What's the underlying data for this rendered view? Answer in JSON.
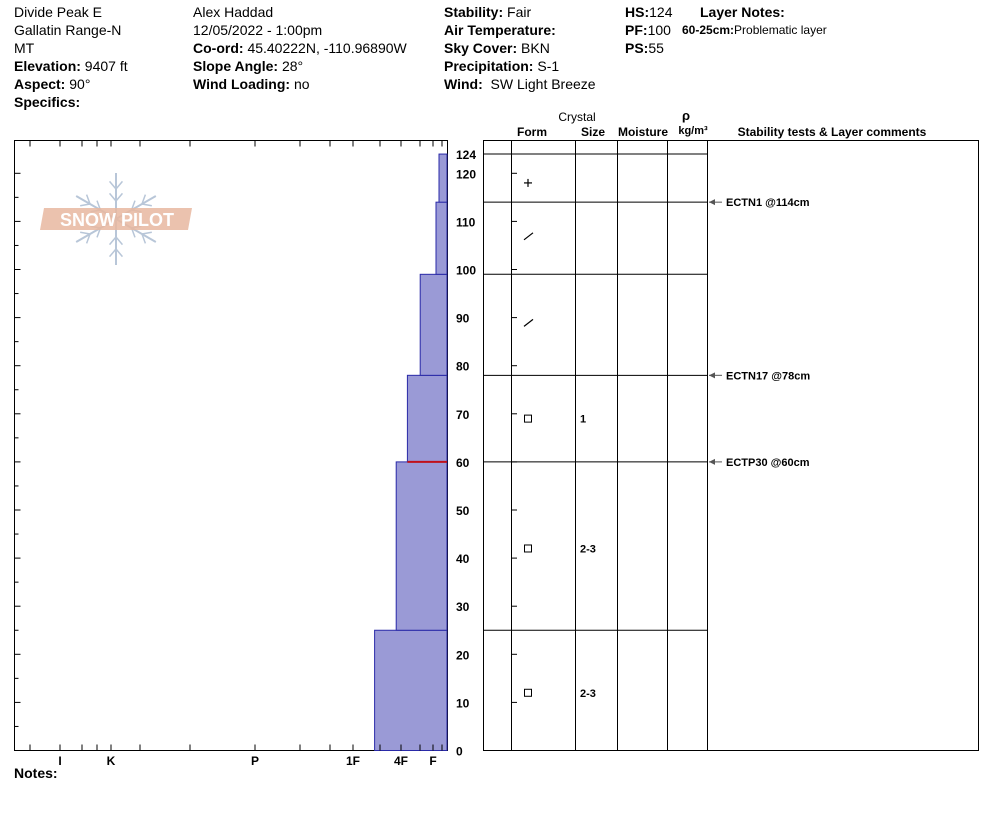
{
  "header": {
    "location": "Divide Peak E",
    "range": "Gallatin Range-N",
    "state": "MT",
    "elevation_label": "Elevation:",
    "elevation_value": "9407 ft",
    "aspect_label": "Aspect:",
    "aspect_value": "90°",
    "specifics_label": "Specifics:",
    "observer": "Alex Haddad",
    "datetime": "12/05/2022 - 1:00pm",
    "coord_label": "Co-ord:",
    "coord_value": "45.40222N, -110.96890W",
    "slope_label": "Slope Angle:",
    "slope_value": "28°",
    "wind_loading_label": "Wind Loading:",
    "wind_loading_value": "no",
    "stability_label": "Stability:",
    "stability_value": "Fair",
    "air_temp_label": "Air Temperature:",
    "sky_label": "Sky Cover:",
    "sky_value": "BKN",
    "precip_label": "Precipitation:",
    "precip_value": "S-1",
    "wind_label": "Wind:",
    "wind_value": "SW Light Breeze",
    "hs_label": "HS:",
    "hs_value": "124",
    "pf_label": "PF:",
    "pf_value": "100",
    "ps_label": "PS:",
    "ps_value": "55",
    "layer_notes_label": "Layer Notes:",
    "layer_note_depth": "60-25cm:",
    "layer_note_text": "Problematic layer"
  },
  "notes_label": "Notes:",
  "logo_text": "SNOW PILOT",
  "columns": {
    "crystal": "Crystal",
    "form": "Form",
    "size": "Size",
    "moisture": "Moisture",
    "rho": "ρ",
    "density_unit": "kg/m³",
    "stability": "Stability tests & Layer comments"
  },
  "chart_data": {
    "type": "bar",
    "orientation": "horizontal-profile",
    "yunit": "cm",
    "ylim": [
      0,
      124
    ],
    "y_ticks": [
      0,
      10,
      20,
      30,
      40,
      50,
      60,
      70,
      80,
      90,
      100,
      110,
      120
    ],
    "hs_tick": 124,
    "hardness_scale": [
      "I",
      "K",
      "P",
      "1F",
      "4F",
      "F"
    ],
    "hardness_scale_values": {
      "I": 0,
      "K": 1,
      "P": 2,
      "1F": 3,
      "4F": 4,
      "F": 5
    },
    "layers": [
      {
        "bottom": 0,
        "top": 25,
        "hardness": 3.45
      },
      {
        "bottom": 25,
        "top": 60,
        "hardness": 3.9
      },
      {
        "bottom": 60,
        "top": 78,
        "hardness": 4.2
      },
      {
        "bottom": 78,
        "top": 99,
        "hardness": 4.6
      },
      {
        "bottom": 99,
        "top": 114,
        "hardness": 5.05
      },
      {
        "bottom": 114,
        "top": 124,
        "hardness": 5.1
      }
    ],
    "problem_layer_line": 60,
    "layer_boundaries": [
      25,
      60,
      78,
      99,
      114,
      124
    ],
    "crystals": [
      {
        "depth": 118,
        "form": "+",
        "size": ""
      },
      {
        "depth": 107,
        "form": "/",
        "size": ""
      },
      {
        "depth": 89,
        "form": "/",
        "size": ""
      },
      {
        "depth": 69,
        "form": "□",
        "size": "1"
      },
      {
        "depth": 42,
        "form": "□",
        "size": "2-3"
      },
      {
        "depth": 12,
        "form": "□",
        "size": "2-3"
      }
    ],
    "stability_tests": [
      {
        "depth": 114,
        "label": "ECTN1 @114cm"
      },
      {
        "depth": 78,
        "label": "ECTN17 @78cm"
      },
      {
        "depth": 60,
        "label": "ECTP30 @60cm"
      }
    ]
  },
  "colors": {
    "bar_fill": "#9a9ad6",
    "bar_stroke": "#2a2aa8",
    "problem_line": "#c0101a",
    "logo": "#e8b7a0"
  }
}
